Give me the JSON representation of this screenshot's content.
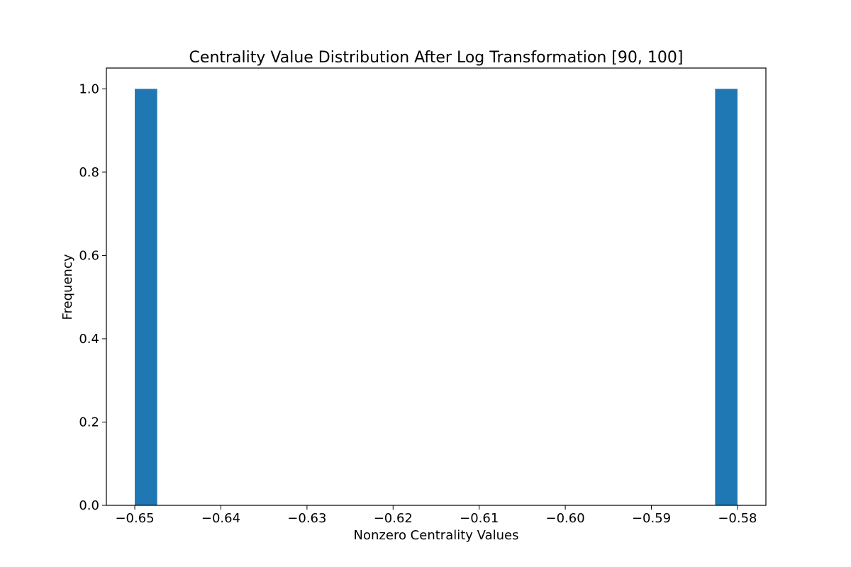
{
  "chart_data": {
    "type": "bar",
    "title": "Centrality Value Distribution After Log Transformation [90, 100]",
    "xlabel": "Nonzero Centrality Values",
    "ylabel": "Frequency",
    "xlim": [
      -0.6533,
      -0.5767
    ],
    "ylim": [
      0.0,
      1.05
    ],
    "x_ticks": [
      -0.65,
      -0.64,
      -0.63,
      -0.62,
      -0.61,
      -0.6,
      -0.59,
      -0.58
    ],
    "x_tick_labels": [
      "−0.65",
      "−0.64",
      "−0.63",
      "−0.62",
      "−0.61",
      "−0.60",
      "−0.59",
      "−0.58"
    ],
    "y_ticks": [
      0.0,
      0.2,
      0.4,
      0.6,
      0.8,
      1.0
    ],
    "y_tick_labels": [
      "0.0",
      "0.2",
      "0.4",
      "0.6",
      "0.8",
      "1.0"
    ],
    "bars": [
      {
        "x_start": -0.65,
        "x_end": -0.6474,
        "value": 1.0
      },
      {
        "x_start": -0.5826,
        "x_end": -0.58,
        "value": 1.0
      }
    ],
    "bar_color": "#1f77b4",
    "grid": false
  }
}
